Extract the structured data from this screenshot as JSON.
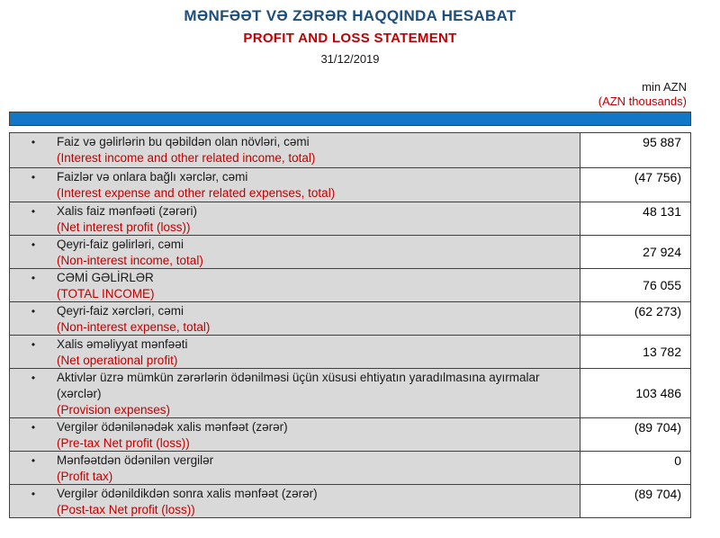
{
  "header": {
    "title_az": "MƏNFƏƏT VƏ ZƏRƏR HAQQINDA HESABAT",
    "title_en": "PROFIT AND LOSS STATEMENT",
    "date": "31/12/2019",
    "unit_az": "min AZN",
    "unit_en": "(AZN thousands)"
  },
  "colors": {
    "title_blue": "#1F4E79",
    "accent_red": "#C00000",
    "header_bar_blue": "#1178C8",
    "row_gray": "#D9D9D9",
    "border_dark": "#3F3F3F"
  },
  "table": {
    "bullet": "•",
    "rows": [
      {
        "az": "Faiz və gəlirlərin bu qəbildən olan növləri, cəmi",
        "en": "(Interest income and other related income, total)",
        "value": "95 887"
      },
      {
        "az": "Faizlər və onlara bağlı xərclər, cəmi",
        "en": "(Interest expense and other related expenses, total)",
        "value": "(47 756)"
      },
      {
        "az": "Xalis faiz mənfəəti (zərəri)",
        "en": "(Net interest profit (loss))",
        "value": "48 131"
      },
      {
        "az": "Qeyri-faiz gəlirləri, cəmi",
        "en": "(Non-interest income, total)",
        "value": "27 924"
      },
      {
        "az": "CƏMİ GƏLİRLƏR",
        "en": "(TOTAL INCOME)",
        "value": "76 055"
      },
      {
        "az": "Qeyri-faiz xərcləri, cəmi",
        "en": "(Non-interest expense, total)",
        "value": "(62 273)"
      },
      {
        "az": "Xalis əməliyyat mənfəəti",
        "en": "(Net operational profit)",
        "value": "13 782"
      },
      {
        "az": "Aktivlər üzrə mümkün zərərlərin ödənilməsi üçün xüsusi ehtiyatın yaradılmasına ayırmalar (xərclər)",
        "en": "(Provision expenses)",
        "value": "103 486"
      },
      {
        "az": "Vergilər ödənilənədək xalis mənfəət (zərər)",
        "en": "(Pre-tax Net profit (loss))",
        "value": "(89 704)"
      },
      {
        "az": "Mənfəətdən ödənilən vergilər",
        "en": "(Profit tax)",
        "value": "0"
      },
      {
        "az": "Vergilər ödənildikdən sonra xalis mənfəət (zərər)",
        "en": "(Post-tax Net profit (loss))",
        "value": "(89 704)"
      }
    ]
  }
}
